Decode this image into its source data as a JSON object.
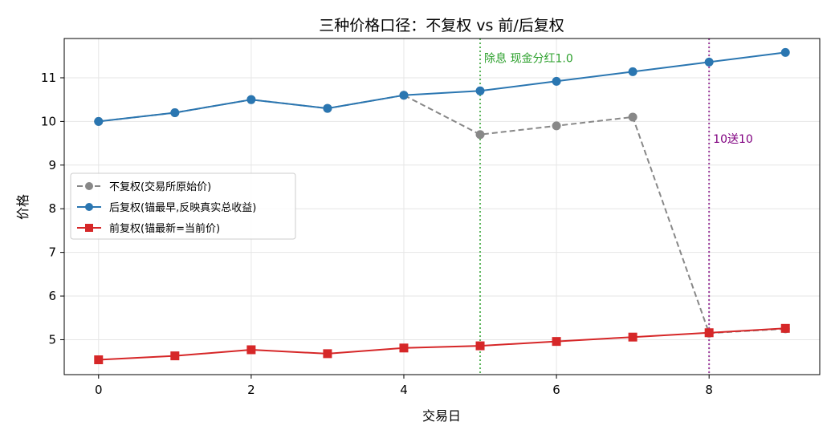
{
  "chart_data": {
    "type": "line",
    "title": "三种价格口径：不复权 vs 前/后复权",
    "xlabel": "交易日",
    "ylabel": "价格",
    "xlim": [
      -0.45,
      9.45
    ],
    "ylim": [
      4.2,
      11.9
    ],
    "xticks": [
      0,
      2,
      4,
      6,
      8
    ],
    "yticks": [
      5,
      6,
      7,
      8,
      9,
      10,
      11
    ],
    "grid": true,
    "legend_position": "center-left",
    "x": [
      0,
      1,
      2,
      3,
      4,
      5,
      6,
      7,
      8,
      9
    ],
    "series": [
      {
        "name": "不复权(交易所原始价)",
        "color": "#888888",
        "style": "dashed",
        "marker": "circle",
        "values": [
          10.0,
          10.2,
          10.5,
          10.3,
          10.6,
          9.7,
          9.9,
          10.1,
          5.15,
          5.25
        ]
      },
      {
        "name": "后复权(锚最早,反映真实总收益)",
        "color": "#2a76b1",
        "style": "solid",
        "marker": "circle",
        "values": [
          10.0,
          10.2,
          10.5,
          10.3,
          10.6,
          10.7,
          10.92,
          11.14,
          11.36,
          11.58
        ]
      },
      {
        "name": "前复权(锚最新=当前价)",
        "color": "#d62728",
        "style": "solid",
        "marker": "square",
        "values": [
          4.54,
          4.63,
          4.77,
          4.68,
          4.81,
          4.86,
          4.96,
          5.06,
          5.16,
          5.26
        ]
      }
    ],
    "annotations": [
      {
        "x": 5,
        "text": "除息 现金分红1.0",
        "color": "#2ca02c",
        "text_y": 11.45
      },
      {
        "x": 8,
        "text": "10送10",
        "color": "#800080",
        "text_y": 9.6
      }
    ]
  }
}
